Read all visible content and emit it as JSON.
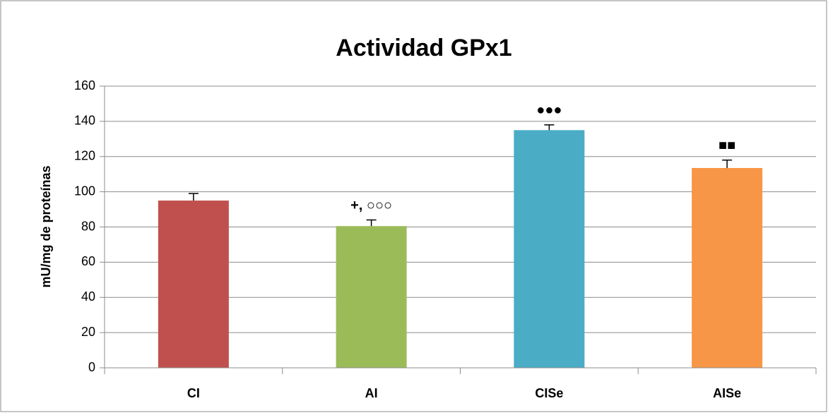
{
  "chart_data": {
    "type": "bar",
    "title": "Actividad GPx1",
    "y_label": "mU/mg de proteínas",
    "categories": [
      "CI",
      "AI",
      "CISe",
      "AISe"
    ],
    "values": [
      95,
      80.5,
      135,
      113.5
    ],
    "errors": [
      4,
      3.5,
      3,
      4.5
    ],
    "colors": [
      "#c0504d",
      "#9bbb59",
      "#4bacc6",
      "#f79646"
    ],
    "annotations": [
      {
        "category": "AI",
        "text": "+, ○○○"
      },
      {
        "category": "CISe",
        "text": "●●●"
      },
      {
        "category": "AISe",
        "text": "■■"
      }
    ],
    "ylim": [
      0,
      160
    ],
    "yticks": [
      0,
      20,
      40,
      60,
      80,
      100,
      120,
      140,
      160
    ],
    "grid": true
  }
}
